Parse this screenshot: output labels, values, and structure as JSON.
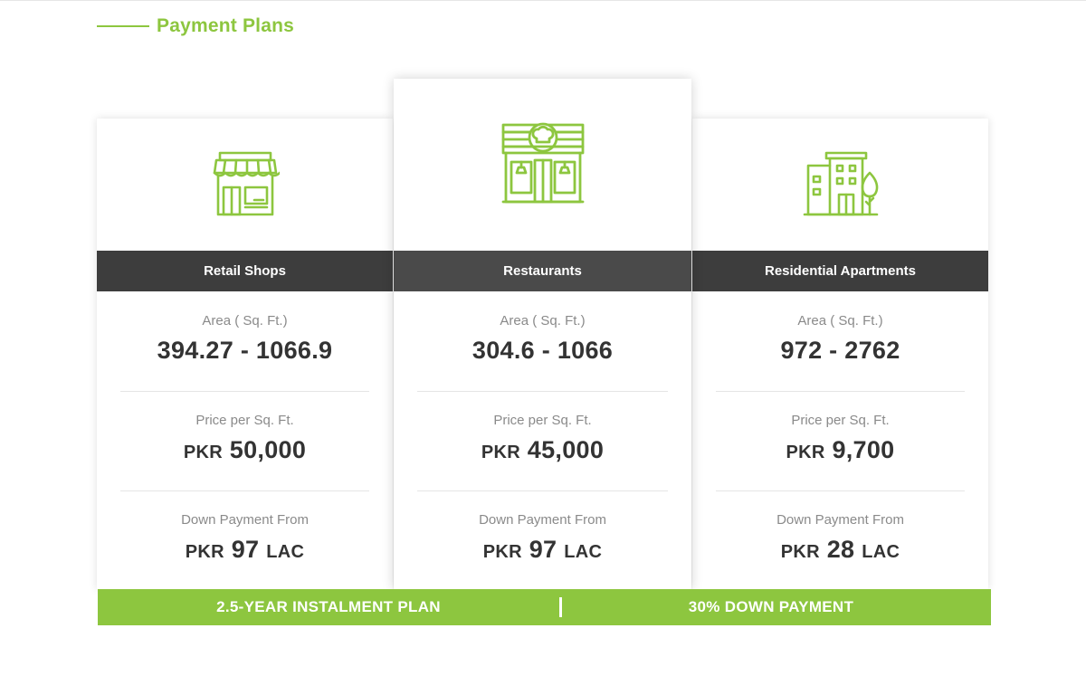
{
  "section": {
    "title": "Payment Plans"
  },
  "colors": {
    "accent": "#8dc63f",
    "band": "#3d3d3d"
  },
  "cards": [
    {
      "icon": "shop-icon",
      "name": "Retail Shops",
      "area_label": "Area ( Sq. Ft.)",
      "area_value": "394.27 - 1066.9",
      "price_label": "Price per Sq. Ft.",
      "price_currency": "PKR",
      "price_value": "50,000",
      "down_label": "Down Payment From",
      "down_currency": "PKR",
      "down_value": "97",
      "down_unit": "LAC"
    },
    {
      "icon": "restaurant-icon",
      "name": "Restaurants",
      "area_label": "Area ( Sq. Ft.)",
      "area_value": "304.6 - 1066",
      "price_label": "Price per Sq. Ft.",
      "price_currency": "PKR",
      "price_value": "45,000",
      "down_label": "Down Payment From",
      "down_currency": "PKR",
      "down_value": "97",
      "down_unit": "LAC"
    },
    {
      "icon": "apartment-building-icon",
      "name": "Residential Apartments",
      "area_label": "Area ( Sq. Ft.)",
      "area_value": "972 - 2762",
      "price_label": "Price per Sq. Ft.",
      "price_currency": "PKR",
      "price_value": "9,700",
      "down_label": "Down Payment From",
      "down_currency": "PKR",
      "down_value": "28",
      "down_unit": "LAC"
    }
  ],
  "plan_bar": {
    "left": "2.5-YEAR INSTALMENT PLAN",
    "right": "30% DOWN PAYMENT"
  }
}
